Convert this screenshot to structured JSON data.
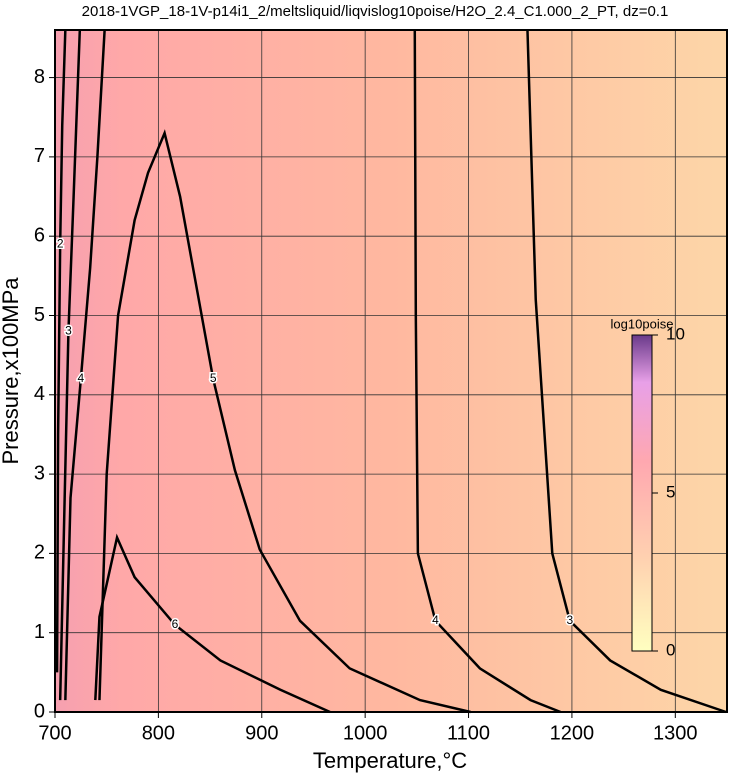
{
  "chart_data": {
    "type": "contour",
    "title": "2018-1VGP_18-1V-p14i1_2/meltsliquid/liqvislog10poise/H2O_2.4_C1.000_2_PT, dz=0.1",
    "x_label": "Temperature,°C",
    "y_label": "Pressure,x100MPa",
    "xlim": [
      700,
      1350
    ],
    "ylim": [
      0,
      8.6
    ],
    "xticks": [
      700,
      800,
      900,
      1000,
      1100,
      1200,
      1300
    ],
    "yticks": [
      0,
      1,
      2,
      3,
      4,
      5,
      6,
      7,
      8
    ],
    "grid": true,
    "contours": [
      {
        "level": 3,
        "x": [
          1157,
          1165,
          1181,
          1198,
          1237,
          1286,
          1349
        ],
        "y": [
          8.6,
          5.2,
          2.0,
          1.15,
          0.65,
          0.28,
          0
        ]
      },
      {
        "level": 4,
        "x": [
          1048,
          1049,
          1051,
          1068,
          1111,
          1160,
          1189
        ],
        "y": [
          8.6,
          5.0,
          2.0,
          1.15,
          0.55,
          0.15,
          0
        ]
      },
      {
        "level": 5,
        "x": [
          743,
          750,
          761,
          777,
          790,
          806,
          821,
          853,
          874,
          898,
          937,
          985,
          1053,
          1102
        ],
        "y": [
          0.15,
          3.0,
          5.0,
          6.2,
          6.8,
          7.3,
          6.5,
          4.2,
          3.05,
          2.05,
          1.15,
          0.55,
          0.15,
          0
        ]
      },
      {
        "level": 6,
        "x": [
          739,
          743,
          760,
          777,
          816,
          860,
          918,
          966
        ],
        "y": [
          0.15,
          1.2,
          2.2,
          1.7,
          1.1,
          0.65,
          0.28,
          0
        ]
      },
      {
        "level": 4,
        "x": [
          748,
          741,
          734,
          725,
          715,
          710
        ],
        "y": [
          8.6,
          7.0,
          5.6,
          4.2,
          2.7,
          0.15
        ]
      },
      {
        "level": 3,
        "x": [
          724,
          718,
          713,
          709,
          705
        ],
        "y": [
          8.6,
          6.5,
          4.8,
          2.5,
          0.15
        ]
      },
      {
        "level": 2,
        "x": [
          710,
          707,
          705,
          703,
          702
        ],
        "y": [
          8.6,
          7.4,
          5.9,
          3.5,
          0.5
        ]
      }
    ],
    "colorbar": {
      "label": "log10poise",
      "clim": [
        0,
        10
      ],
      "ticks": [
        0,
        5,
        10
      ]
    }
  }
}
